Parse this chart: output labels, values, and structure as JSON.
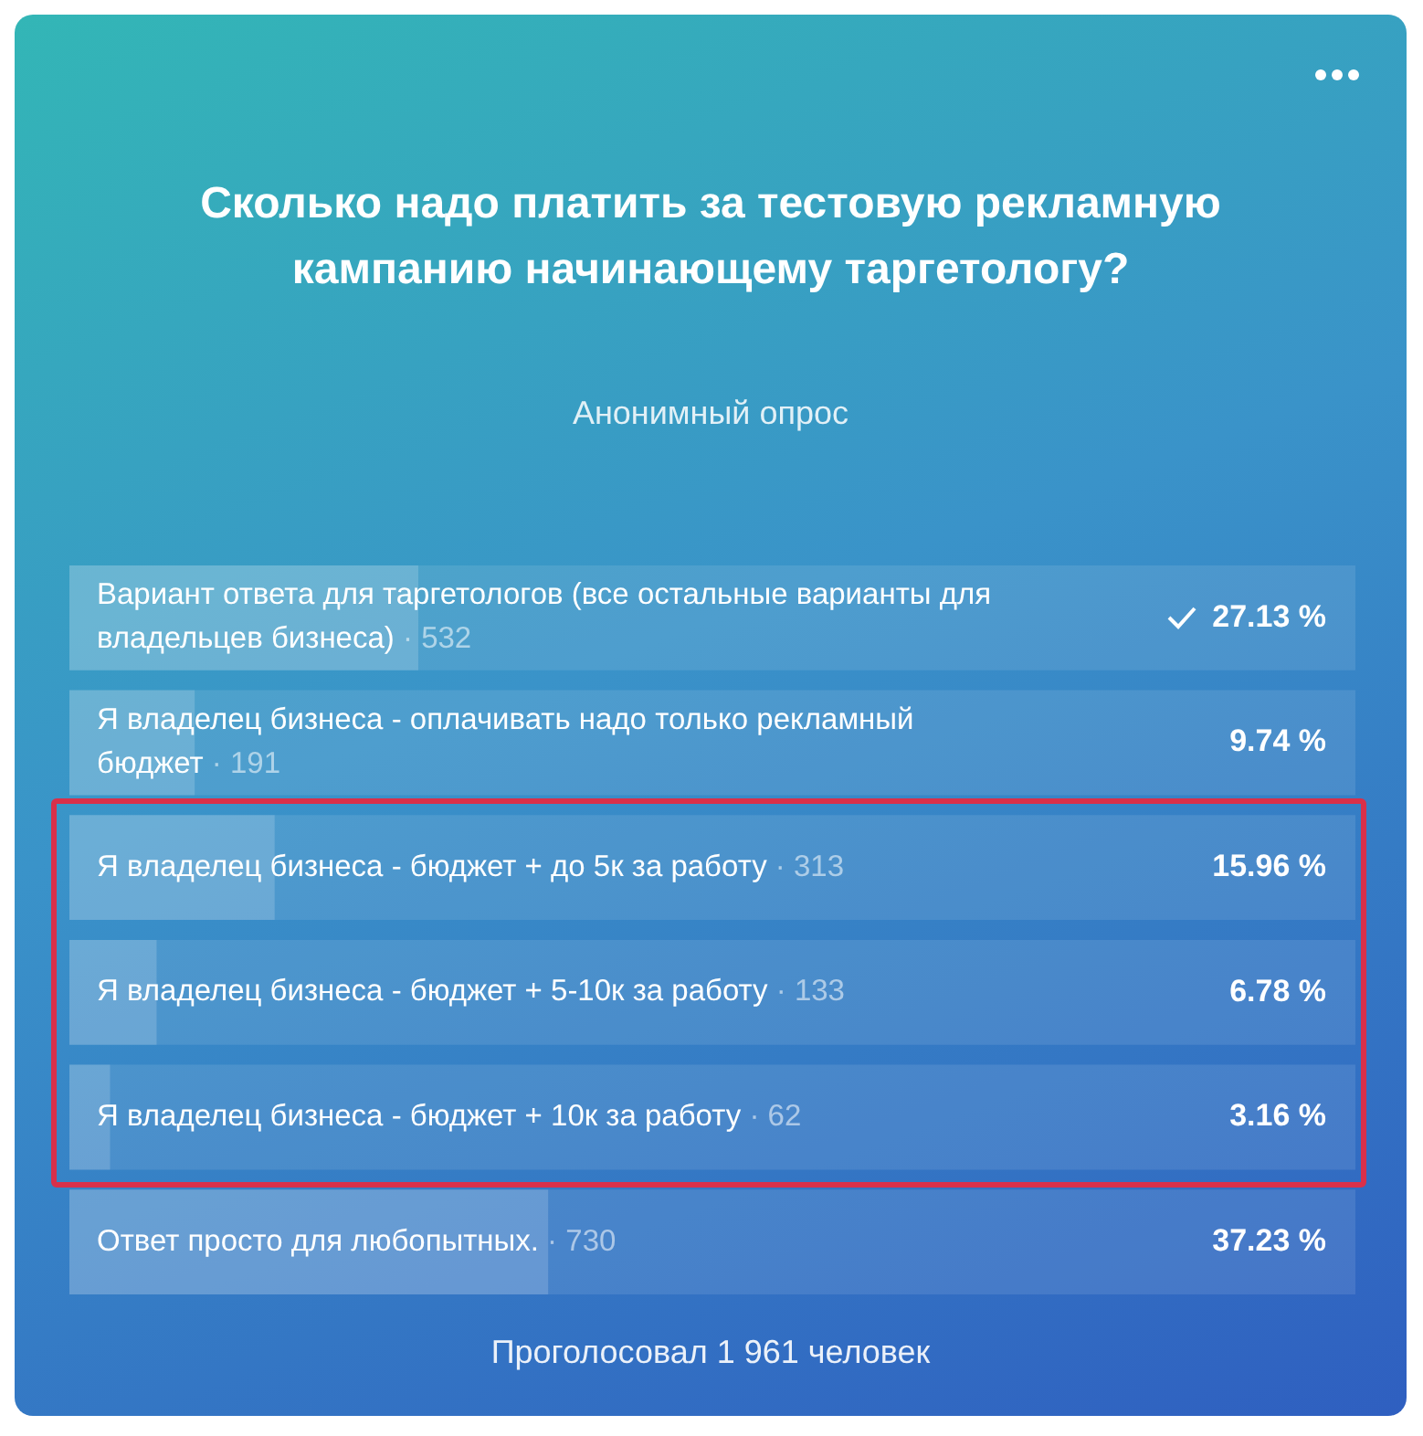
{
  "chart_data": {
    "type": "bar",
    "orientation": "horizontal",
    "title": "Сколько надо платить за тестовую рекламную кампанию начинающему таргетологу?",
    "subtitle": "Анонимный опрос",
    "categories": [
      "Вариант ответа для таргетологов (все остальные варианты для владельцев бизнеса)",
      "Я владелец бизнеса - оплачивать надо только рекламный бюджет",
      "Я владелец бизнеса - бюджет + до 5к за работу",
      "Я владелец бизнеса - бюджет + 5-10к за работу",
      "Я владелец бизнеса - бюджет + 10к за работу",
      "Ответ просто для любопытных."
    ],
    "values": [
      27.13,
      9.74,
      15.96,
      6.78,
      3.16,
      37.23
    ],
    "value_labels": [
      "27.13 %",
      "9.74 %",
      "15.96 %",
      "6.78 %",
      "3.16 %",
      "37.23 %"
    ],
    "color": "#ffffff",
    "xlim": [
      0,
      100
    ],
    "tick_labels": false,
    "grid": false,
    "legend": false,
    "annotations": [
      "· 532",
      "· 191",
      "· 313",
      "· 133",
      "· 62",
      "· 730",
      "Проголосовал 1 961 человек"
    ]
  }
}
